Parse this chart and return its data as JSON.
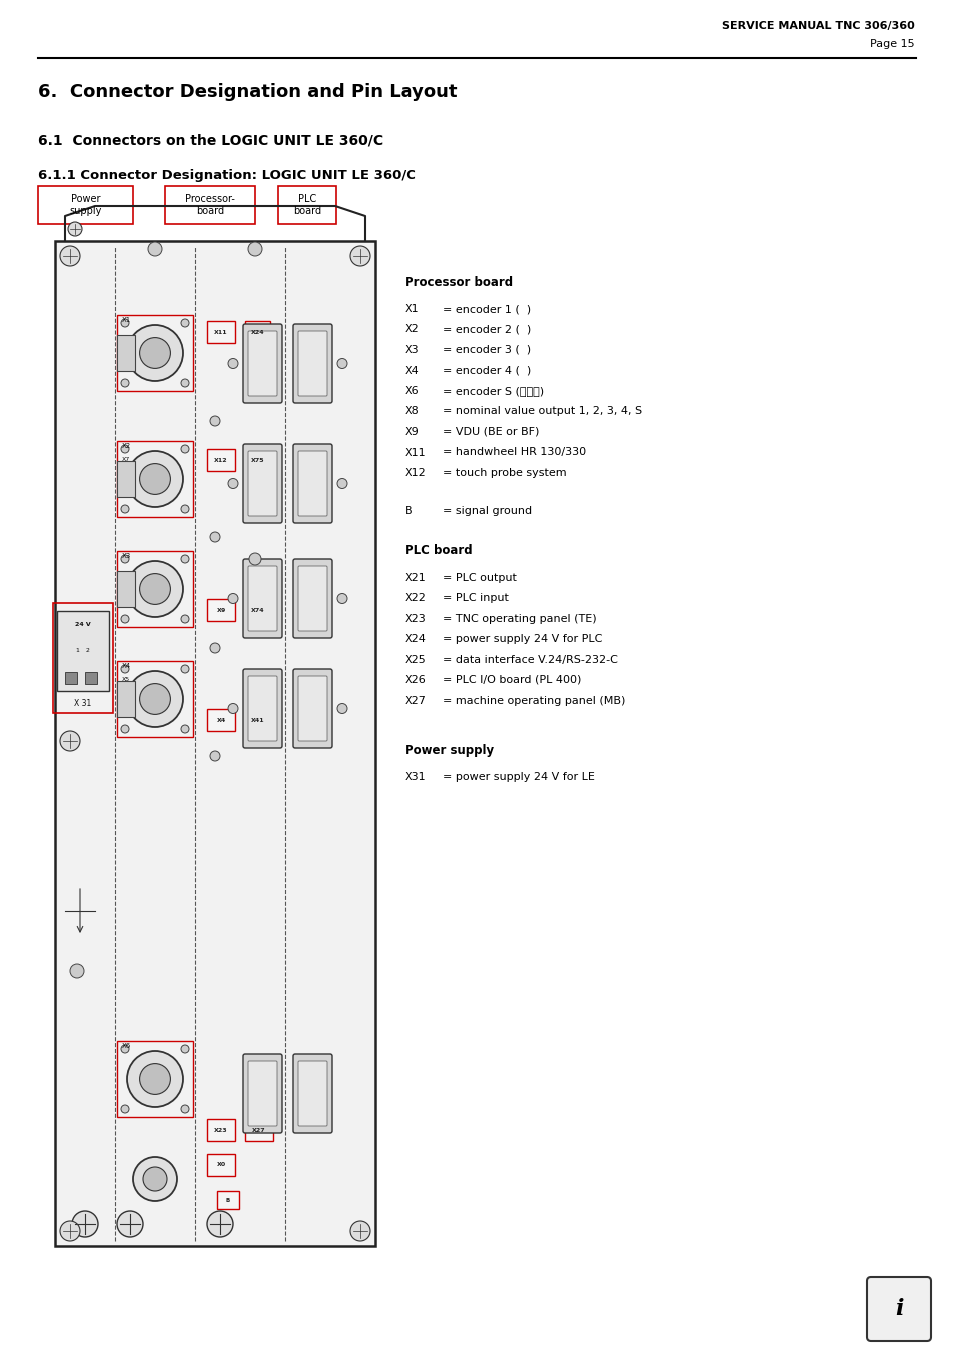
{
  "bg_color": "#ffffff",
  "page_width": 9.54,
  "page_height": 13.51,
  "header_title": "SERVICE MANUAL TNC 306/360",
  "header_page": "Page 15",
  "chapter_title": "6.  Connector Designation and Pin Layout",
  "section_title": "6.1  Connectors on the LOGIC UNIT LE 360/C",
  "subsection_title": "6.1.1 Connector Designation: LOGIC UNIT LE 360/C",
  "label_power_supply": "Power\nsupply",
  "label_processor_board": "Processor-\nboard",
  "label_plc_board": "PLC\nboard",
  "processor_board_title": "Processor board",
  "processor_board_entries": [
    [
      "X1",
      "= encoder 1 (  )"
    ],
    [
      "X2",
      "= encoder 2 (  )"
    ],
    [
      "X3",
      "= encoder 3 (  )"
    ],
    [
      "X4",
      "= encoder 4 (  )"
    ],
    [
      "X6",
      "= encoder S (⎺⎺⎹)"
    ],
    [
      "X8",
      "= nominal value output 1, 2, 3, 4, S"
    ],
    [
      "X9",
      "= VDU (BE or BF)"
    ],
    [
      "X11",
      "= handwheel HR 130/330"
    ],
    [
      "X12",
      "= touch probe system"
    ]
  ],
  "signal_ground": [
    "B",
    "= signal ground"
  ],
  "plc_board_title": "PLC board",
  "plc_board_entries": [
    [
      "X21",
      "= PLC output"
    ],
    [
      "X22",
      "= PLC input"
    ],
    [
      "X23",
      "= TNC operating panel (TE)"
    ],
    [
      "X24",
      "= power supply 24 V for PLC"
    ],
    [
      "X25",
      "= data interface V.24/RS-232-C"
    ],
    [
      "X26",
      "= PLC I/O board (PL 400)"
    ],
    [
      "X27",
      "= machine operating panel (MB)"
    ]
  ],
  "power_supply_title": "Power supply",
  "power_supply_entries": [
    [
      "X31",
      "= power supply 24 V for LE"
    ]
  ],
  "info_icon_text": "i"
}
